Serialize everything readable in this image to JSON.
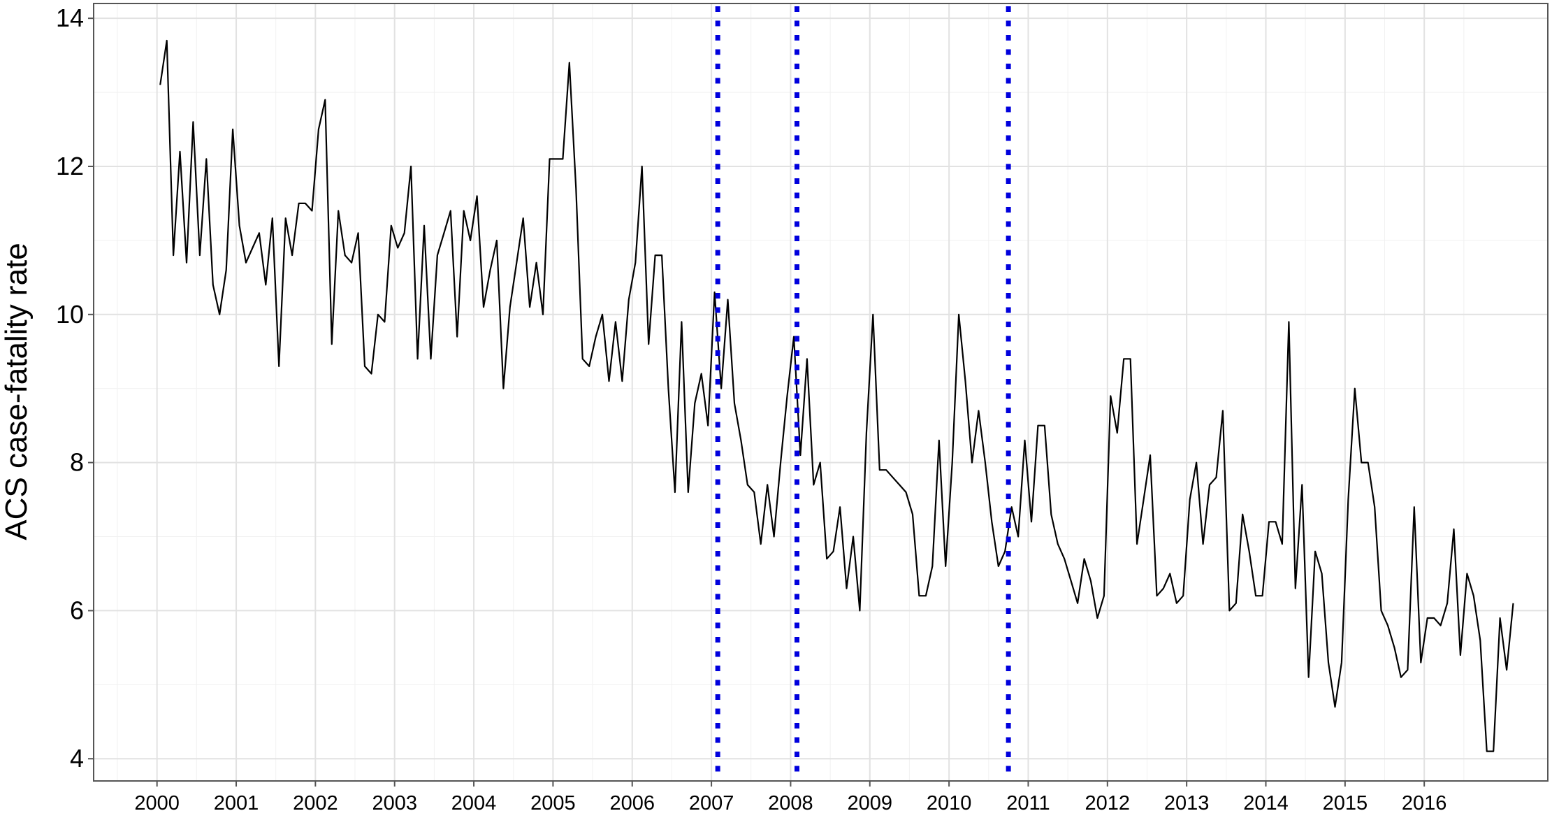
{
  "chart_data": {
    "type": "line",
    "title": "",
    "xlabel": "",
    "ylabel": "ACS case-fatality rate",
    "xlim": [
      1999.2,
      2017.56
    ],
    "ylim": [
      3.7,
      14.2
    ],
    "x_ticks": [
      "2000",
      "2001",
      "2002",
      "2003",
      "2004",
      "2005",
      "2006",
      "2007",
      "2008",
      "2009",
      "2010",
      "2011",
      "2012",
      "2013",
      "2014",
      "2015",
      "2016"
    ],
    "y_ticks": [
      "4",
      "6",
      "8",
      "10",
      "12",
      "14"
    ],
    "grid": true,
    "legend": "none",
    "colors": {
      "series": "#000000",
      "vlines": "#0000dd",
      "grid": "#e2e2e2",
      "border": "#555555"
    },
    "vlines": [
      {
        "x": 2007.08,
        "style": "dotted"
      },
      {
        "x": 2008.08,
        "style": "dotted"
      },
      {
        "x": 2010.75,
        "style": "dotted"
      }
    ],
    "series": [
      {
        "x_start": 2000.04,
        "x_step": 0.0833333,
        "values": [
          13.1,
          13.7,
          10.8,
          12.2,
          10.7,
          12.6,
          10.8,
          12.1,
          10.4,
          10.0,
          10.6,
          12.5,
          11.2,
          10.7,
          10.9,
          11.1,
          10.4,
          11.3,
          9.3,
          11.3,
          10.8,
          11.5,
          11.5,
          11.4,
          12.5,
          12.9,
          9.6,
          11.4,
          10.8,
          10.7,
          11.1,
          9.3,
          9.2,
          10.0,
          9.9,
          11.2,
          10.9,
          11.1,
          12.0,
          9.4,
          11.2,
          9.4,
          10.8,
          11.1,
          11.4,
          9.7,
          11.4,
          11.0,
          11.6,
          10.1,
          10.6,
          11.0,
          9.0,
          10.1,
          10.7,
          11.3,
          10.1,
          10.7,
          10.0,
          12.1,
          12.1,
          12.1,
          13.4,
          11.7,
          9.4,
          9.3,
          9.7,
          10.0,
          9.1,
          9.9,
          9.1,
          10.2,
          10.7,
          12.0,
          9.6,
          10.8,
          10.8,
          9.0,
          7.6,
          9.9,
          7.6,
          8.8,
          9.2,
          8.5,
          10.3,
          9.0,
          10.2,
          8.8,
          8.3,
          7.7,
          7.6,
          6.9,
          7.7,
          7.0,
          8.0,
          8.9,
          9.7,
          8.1,
          9.4,
          7.7,
          8.0,
          6.7,
          6.8,
          7.4,
          6.3,
          7.0,
          6.0,
          8.4,
          10.0,
          7.9,
          7.9,
          7.8,
          7.7,
          7.6,
          7.3,
          6.2,
          6.2,
          6.6,
          8.3,
          6.6,
          8.0,
          10.0,
          9.1,
          8.0,
          8.7,
          8.0,
          7.2,
          6.6,
          6.8,
          7.4,
          7.0,
          8.3,
          7.2,
          8.5,
          8.5,
          7.3,
          6.9,
          6.7,
          6.4,
          6.1,
          6.7,
          6.4,
          5.9,
          6.2,
          8.9,
          8.4,
          9.4,
          9.4,
          6.9,
          7.5,
          8.1,
          6.2,
          6.3,
          6.5,
          6.1,
          6.2,
          7.5,
          8.0,
          6.9,
          7.7,
          7.8,
          8.7,
          6.0,
          6.1,
          7.3,
          6.8,
          6.2,
          6.2,
          7.2,
          7.2,
          6.9,
          9.9,
          6.3,
          7.7,
          5.1,
          6.8,
          6.5,
          5.3,
          4.7,
          5.3,
          7.5,
          9.0,
          8.0,
          8.0,
          7.4,
          6.0,
          5.8,
          5.5,
          5.1,
          5.2,
          7.4,
          5.3,
          5.9,
          5.9,
          5.8,
          6.1,
          7.1,
          5.4,
          6.5,
          6.2,
          5.6,
          4.1,
          4.1,
          5.9,
          5.2,
          6.1
        ]
      }
    ]
  }
}
